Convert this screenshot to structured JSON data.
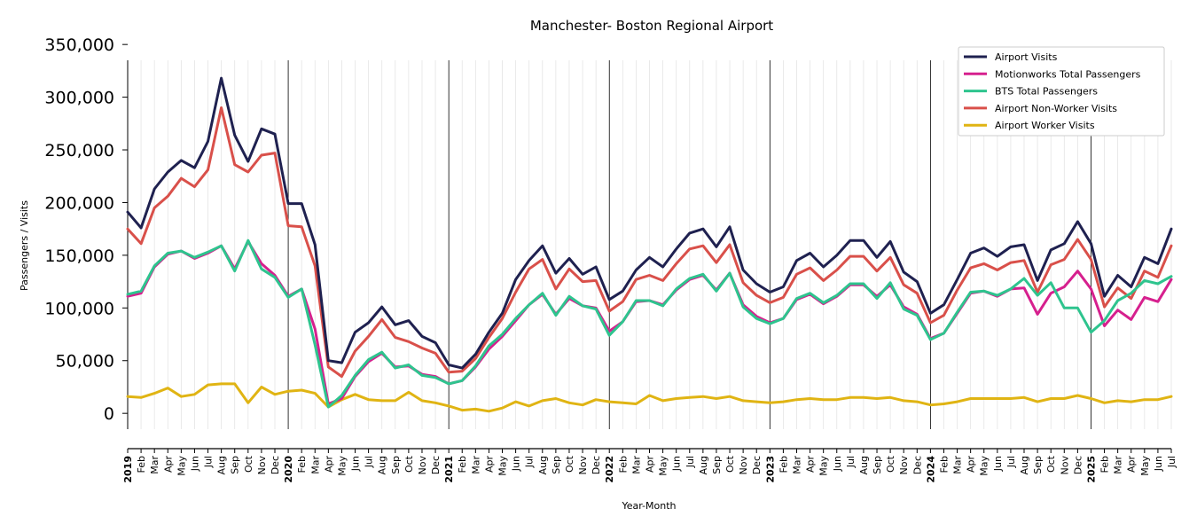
{
  "chart_data": {
    "type": "line",
    "title": "Manchester- Boston Regional Airport",
    "xlabel": "Year-Month",
    "ylabel": "Passengers / Visits",
    "ylim": [
      -15000,
      335000
    ],
    "yticks": [
      0,
      50000,
      100000,
      150000,
      200000,
      250000,
      300000,
      350000
    ],
    "ytick_labels": [
      "0",
      "50,000",
      "100,000",
      "150,000",
      "200,000",
      "250,000",
      "300,000",
      "350,000"
    ],
    "grid": "vertical monthly gridlines, black lines at year boundaries",
    "legend_position": "top-right",
    "x": [
      "2019",
      "Feb",
      "Mar",
      "Apr",
      "May",
      "Jun",
      "Jul",
      "Aug",
      "Sep",
      "Oct",
      "Nov",
      "Dec",
      "2020",
      "Feb",
      "Mar",
      "Apr",
      "May",
      "Jun",
      "Jul",
      "Aug",
      "Sep",
      "Oct",
      "Nov",
      "Dec",
      "2021",
      "Feb",
      "Mar",
      "Apr",
      "May",
      "Jun",
      "Jul",
      "Aug",
      "Sep",
      "Oct",
      "Nov",
      "Dec",
      "2022",
      "Feb",
      "Mar",
      "Apr",
      "May",
      "Jun",
      "Jul",
      "Aug",
      "Sep",
      "Oct",
      "Nov",
      "Dec",
      "2023",
      "Feb",
      "Mar",
      "Apr",
      "May",
      "Jun",
      "Jul",
      "Aug",
      "Sep",
      "Oct",
      "Nov",
      "Dec",
      "2024",
      "Feb",
      "Mar",
      "Apr",
      "May",
      "Jun",
      "Jul",
      "Aug",
      "Sep",
      "Oct",
      "Nov",
      "Dec",
      "2025",
      "Feb",
      "Mar",
      "Apr",
      "May",
      "Jun",
      "Jul"
    ],
    "series": [
      {
        "name": "Airport Visits",
        "color": "#1f2150",
        "values": [
          191000,
          176000,
          213000,
          229000,
          240000,
          233000,
          258000,
          318000,
          264000,
          239000,
          270000,
          265000,
          199000,
          199000,
          160000,
          50000,
          48000,
          77000,
          86000,
          101000,
          84000,
          88000,
          73000,
          67000,
          46000,
          43000,
          56000,
          77000,
          95000,
          127000,
          145000,
          159000,
          133000,
          147000,
          132000,
          139000,
          108000,
          116000,
          136000,
          148000,
          139000,
          156000,
          171000,
          175000,
          158000,
          177000,
          136000,
          123000,
          115000,
          120000,
          145000,
          152000,
          139000,
          150000,
          164000,
          164000,
          148000,
          163000,
          134000,
          125000,
          95000,
          103000,
          127000,
          152000,
          157000,
          149000,
          158000,
          160000,
          126000,
          155000,
          161000,
          182000,
          161000,
          111000,
          131000,
          120000,
          148000,
          142000,
          175000
        ]
      },
      {
        "name": "Motionworks Total Passengers",
        "color": "#d6208e",
        "values": [
          111000,
          114000,
          139000,
          151000,
          154000,
          147000,
          152000,
          159000,
          137000,
          163000,
          142000,
          131000,
          111000,
          118000,
          80000,
          9000,
          14000,
          35000,
          49000,
          57000,
          44000,
          45000,
          37000,
          35000,
          28000,
          31000,
          44000,
          61000,
          73000,
          88000,
          103000,
          113000,
          94000,
          109000,
          102000,
          100000,
          78000,
          87000,
          106000,
          107000,
          103000,
          117000,
          127000,
          131000,
          117000,
          133000,
          103000,
          92000,
          86000,
          90000,
          108000,
          113000,
          104000,
          111000,
          122000,
          122000,
          111000,
          122000,
          101000,
          94000,
          71000,
          76000,
          95000,
          114000,
          116000,
          111000,
          118000,
          119000,
          94000,
          114000,
          120000,
          135000,
          118000,
          83000,
          98000,
          89000,
          110000,
          106000,
          127000
        ]
      },
      {
        "name": "BTS Total Passengers",
        "color": "#2ec48e",
        "values": [
          113000,
          116000,
          140000,
          152000,
          154000,
          148000,
          153000,
          159000,
          135000,
          164000,
          137000,
          129000,
          110000,
          118000,
          65000,
          6000,
          17000,
          36000,
          51000,
          58000,
          43000,
          46000,
          36000,
          34000,
          28000,
          31000,
          45000,
          64000,
          75000,
          90000,
          103000,
          114000,
          93000,
          111000,
          102000,
          99000,
          74000,
          87000,
          107000,
          107000,
          102000,
          118000,
          128000,
          132000,
          116000,
          133000,
          101000,
          90000,
          85000,
          90000,
          109000,
          114000,
          105000,
          112000,
          123000,
          123000,
          109000,
          124000,
          99000,
          93000,
          70000,
          76000,
          96000,
          115000,
          116000,
          112000,
          118000,
          128000,
          112000,
          124000,
          100000,
          100000,
          77000,
          88000,
          107000,
          114000,
          126000,
          123000,
          130000
        ]
      },
      {
        "name": "Airport Non-Worker Visits",
        "color": "#d9504a",
        "values": [
          175000,
          161000,
          195000,
          206000,
          223000,
          215000,
          231000,
          290000,
          236000,
          229000,
          245000,
          247000,
          178000,
          177000,
          140000,
          44000,
          35000,
          59000,
          73000,
          89000,
          72000,
          68000,
          62000,
          57000,
          39000,
          40000,
          52000,
          72000,
          90000,
          115000,
          137000,
          146000,
          118000,
          137000,
          125000,
          126000,
          97000,
          106000,
          127000,
          131000,
          126000,
          142000,
          156000,
          159000,
          143000,
          160000,
          124000,
          112000,
          105000,
          110000,
          132000,
          138000,
          126000,
          136000,
          149000,
          149000,
          135000,
          148000,
          122000,
          114000,
          86000,
          93000,
          117000,
          138000,
          142000,
          136000,
          143000,
          145000,
          115000,
          141000,
          146000,
          165000,
          146000,
          101000,
          119000,
          109000,
          135000,
          129000,
          159000
        ]
      },
      {
        "name": "Airport Worker Visits",
        "color": "#e0b413",
        "values": [
          16000,
          15000,
          19000,
          24000,
          16000,
          18000,
          27000,
          28000,
          28000,
          10000,
          25000,
          18000,
          21000,
          22000,
          19000,
          6000,
          13000,
          18000,
          13000,
          12000,
          12000,
          20000,
          12000,
          10000,
          7000,
          3000,
          4000,
          2000,
          5000,
          11000,
          7000,
          12000,
          14000,
          10000,
          8000,
          13000,
          11000,
          10000,
          9000,
          17000,
          12000,
          14000,
          15000,
          16000,
          14000,
          16000,
          12000,
          11000,
          10000,
          11000,
          13000,
          14000,
          13000,
          13000,
          15000,
          15000,
          14000,
          15000,
          12000,
          11000,
          8000,
          9000,
          11000,
          14000,
          14000,
          14000,
          14000,
          15000,
          11000,
          14000,
          14000,
          17000,
          14000,
          10000,
          12000,
          11000,
          13000,
          13000,
          16000
        ]
      }
    ]
  }
}
